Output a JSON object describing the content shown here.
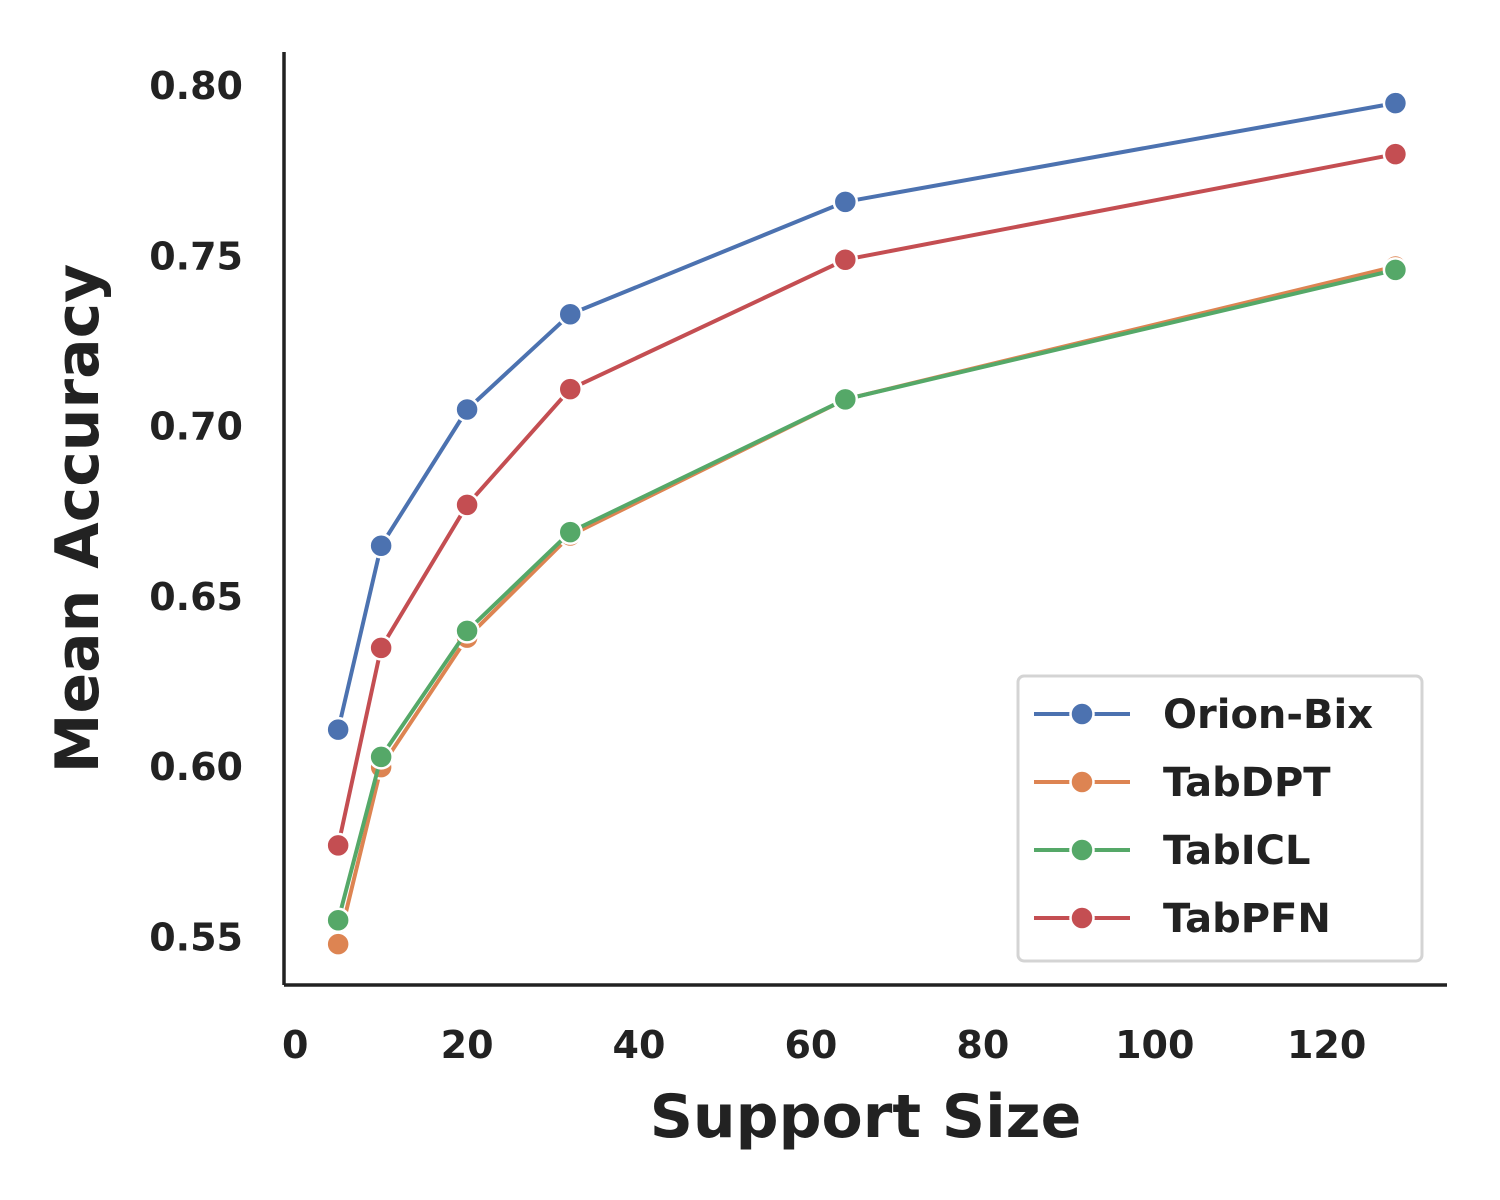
{
  "chart_data": {
    "type": "line",
    "title": "",
    "xlabel": "Support Size",
    "ylabel": "Mean Accuracy",
    "xlim": [
      -1.3,
      134
    ],
    "ylim": [
      0.536,
      0.81
    ],
    "xticks": [
      0,
      20,
      40,
      60,
      80,
      100,
      120
    ],
    "yticks": [
      0.55,
      0.6,
      0.65,
      0.7,
      0.75,
      0.8
    ],
    "ytick_labels": [
      "0.55",
      "0.60",
      "0.65",
      "0.70",
      "0.75",
      "0.80"
    ],
    "grid": false,
    "legend_position": "bottom-right",
    "x": [
      5,
      10,
      20,
      32,
      64,
      128
    ],
    "series": [
      {
        "name": "Orion-Bix",
        "color": "#4c72b0",
        "values": [
          0.611,
          0.665,
          0.705,
          0.733,
          0.766,
          0.795
        ]
      },
      {
        "name": "TabDPT",
        "color": "#dd8452",
        "values": [
          0.548,
          0.6,
          0.638,
          0.668,
          0.708,
          0.747
        ]
      },
      {
        "name": "TabICL",
        "color": "#55a868",
        "values": [
          0.555,
          0.603,
          0.64,
          0.669,
          0.708,
          0.746
        ]
      },
      {
        "name": "TabPFN",
        "color": "#c44e52",
        "values": [
          0.577,
          0.635,
          0.677,
          0.711,
          0.749,
          0.78
        ]
      }
    ]
  }
}
